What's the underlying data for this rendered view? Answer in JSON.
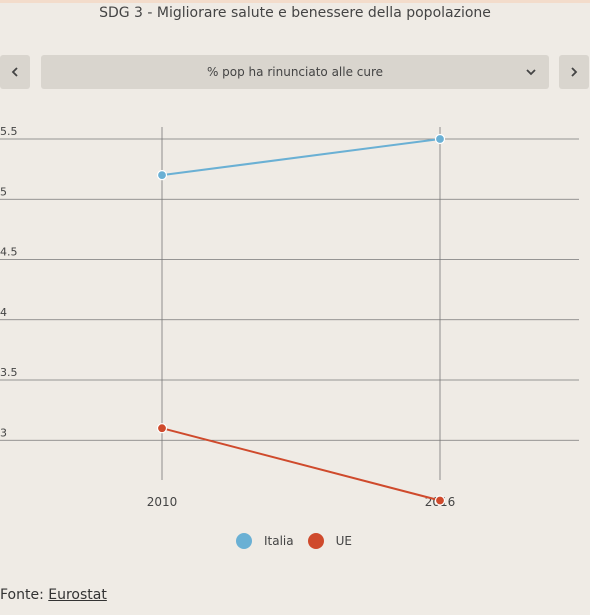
{
  "title": "SDG 3 - Migliorare salute e benessere della popolazione",
  "selector": {
    "value": "% pop ha rinunciato alle cure",
    "prev_icon": "chevron-left-icon",
    "next_icon": "chevron-right-icon",
    "dropdown_icon": "chevron-down-icon"
  },
  "chart_data": {
    "type": "line",
    "title": "",
    "xlabel": "",
    "ylabel": "",
    "x": [
      "2010",
      "2016"
    ],
    "yticks": [
      "5.5",
      "5",
      "4.5",
      "4",
      "3.5",
      "3"
    ],
    "ylim": [
      2.5,
      5.5
    ],
    "grid": true,
    "legend_position": "bottom",
    "series": [
      {
        "name": "Italia",
        "values": [
          5.2,
          5.5
        ],
        "color": "#6ab0d4"
      },
      {
        "name": "UE",
        "values": [
          3.1,
          2.5
        ],
        "color": "#cf4a2c"
      }
    ]
  },
  "source": {
    "prefix": "Fonte:",
    "link_text": "Eurostat"
  }
}
